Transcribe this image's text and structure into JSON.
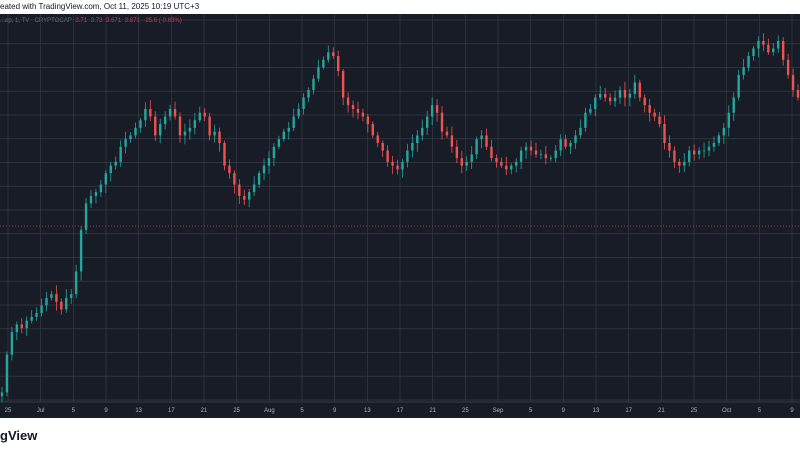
{
  "caption": "eated with TradingView.com, Oct 11, 2025 10:19 UTC+3",
  "brand": "gView",
  "legend": {
    "symbol": "...ap, 1, TV · CRYPTOCAP",
    "open": "3.71",
    "high": "3.73",
    "low": "3.671",
    "close": "3.671",
    "change": "-25.6 (-0.68%)"
  },
  "colors": {
    "background": "#181c27",
    "grid": "#363a45",
    "up": "#26a69a",
    "down": "#ef5350",
    "axis_text": "#b2b5be",
    "price_line": "#ef5350"
  },
  "chart_data": {
    "type": "line",
    "title": "",
    "xlabel": "",
    "ylabel": "",
    "x_tick_labels": [
      "25",
      "Jul",
      "5",
      "9",
      "13",
      "17",
      "21",
      "25",
      "Aug",
      "5",
      "9",
      "13",
      "17",
      "21",
      "25",
      "Sep",
      "5",
      "9",
      "13",
      "17",
      "21",
      "25",
      "Oct",
      "5",
      "9"
    ],
    "grid": true,
    "ylim": [
      0,
      100
    ],
    "price_line_level": 46,
    "series": [
      {
        "values": [
          2,
          12,
          18,
          20,
          19,
          21,
          22,
          23,
          25,
          27,
          28,
          26,
          24,
          27,
          28,
          34,
          45,
          52,
          54,
          55,
          57,
          60,
          62,
          63,
          67,
          69,
          70,
          72,
          74,
          77,
          75,
          70,
          73,
          75,
          77,
          75,
          70,
          71,
          72,
          74,
          76,
          75,
          70,
          71,
          68,
          62,
          60,
          57,
          54,
          53,
          55,
          57,
          60,
          62,
          64,
          67,
          69,
          71,
          72,
          75,
          77,
          80,
          82,
          85,
          88,
          90,
          92,
          91,
          87,
          80,
          78,
          77,
          76,
          75,
          73,
          70,
          68,
          66,
          63,
          62,
          61,
          63,
          66,
          68,
          70,
          72,
          75,
          78,
          76,
          71,
          70,
          67,
          64,
          62,
          63,
          65,
          69,
          70,
          67,
          64,
          63,
          62,
          61,
          62,
          63,
          66,
          67,
          66,
          65,
          65,
          64,
          64,
          66,
          69,
          67,
          68,
          70,
          72,
          76,
          77,
          80,
          81,
          80,
          79,
          80,
          82,
          80,
          81,
          84,
          80,
          78,
          76,
          75,
          73,
          68,
          66,
          63,
          62,
          63,
          66,
          65,
          66,
          66,
          67,
          68,
          70,
          72,
          76,
          80,
          86,
          88,
          91,
          93,
          95,
          94,
          92,
          93,
          95,
          90,
          86,
          82,
          80
        ]
      }
    ]
  }
}
